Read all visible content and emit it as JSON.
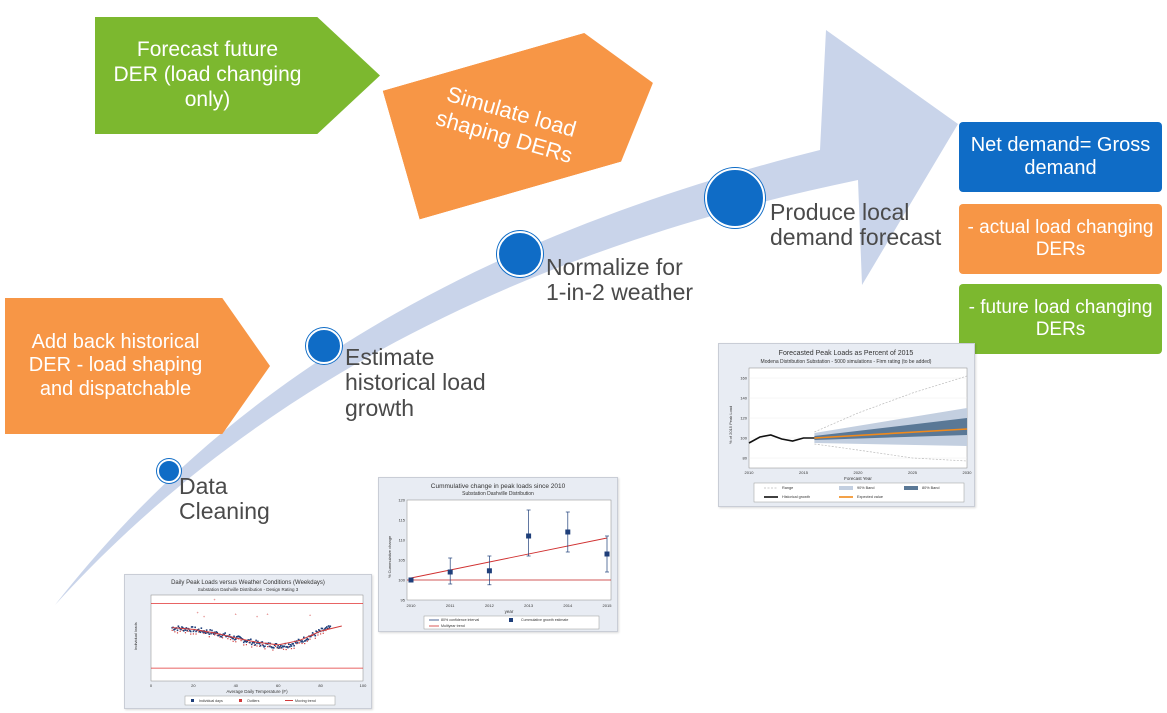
{
  "shapes": {
    "forecast_future_der": "Forecast future DER (load changing only)",
    "simulate_load_shaping": "Simulate load shaping DERs",
    "add_back_historical_der": "Add back historical DER - load shaping and dispatchable"
  },
  "steps": [
    {
      "label": "Data Cleaning"
    },
    {
      "label": "Estimate historical load growth"
    },
    {
      "label": "Normalize for 1-in-2 weather"
    },
    {
      "label": "Produce local demand forecast"
    }
  ],
  "equation": {
    "net_demand": "Net demand= Gross demand",
    "actual_load": "- actual load changing DERs",
    "future_load": "- future load changing DERs"
  },
  "colors": {
    "green": "#7cb82f",
    "orange": "#f79646",
    "blue": "#0f6cc6",
    "arrow": "#c9d4ea"
  },
  "chart_data": [
    {
      "type": "scatter",
      "title": "Daily Peak Loads versus Weather Conditions (Weekdays)",
      "subtitle": "Substation Dashville Distribution - Design Rating 3",
      "xlabel": "Average Daily Temperature (F)",
      "ylabel": "Individual loads",
      "xlim": [
        0,
        100
      ],
      "x_ticks": [
        "0",
        "20",
        "40",
        "60",
        "80",
        "100"
      ],
      "legend": [
        "Individual days",
        "Outliers",
        "Moving trend"
      ],
      "series": [
        {
          "name": "Individual days",
          "x": [
            10,
            15,
            20,
            25,
            30,
            35,
            40,
            45,
            50,
            55,
            60,
            65,
            70,
            75,
            80,
            85
          ],
          "values": [
            0.62,
            0.61,
            0.6,
            0.58,
            0.56,
            0.53,
            0.5,
            0.47,
            0.44,
            0.42,
            0.41,
            0.42,
            0.46,
            0.52,
            0.58,
            0.62
          ]
        },
        {
          "name": "Moving trend",
          "x": [
            10,
            20,
            30,
            40,
            50,
            60,
            70,
            80,
            90
          ],
          "values": [
            0.62,
            0.6,
            0.56,
            0.5,
            0.45,
            0.42,
            0.47,
            0.58,
            0.64
          ]
        }
      ],
      "hlines": [
        0.9,
        0.15
      ],
      "outliers": [
        {
          "x": 22,
          "y": 0.78
        },
        {
          "x": 25,
          "y": 0.73
        },
        {
          "x": 40,
          "y": 0.76
        },
        {
          "x": 55,
          "y": 0.76
        },
        {
          "x": 50,
          "y": 0.73
        },
        {
          "x": 75,
          "y": 0.75
        },
        {
          "x": 30,
          "y": 0.93
        }
      ]
    },
    {
      "type": "scatter",
      "title": "Cummulative change in peak loads since 2010",
      "subtitle": "Substation Dashville Distribution",
      "xlabel": "year",
      "ylabel": "% Cummulative change",
      "x": [
        "2010",
        "2011",
        "2012",
        "2013",
        "2014",
        "2015"
      ],
      "y_ticks": [
        "95",
        "100",
        "105",
        "110",
        "115",
        "120"
      ],
      "ylim": [
        95,
        120
      ],
      "series": [
        {
          "name": "Cummulative growth estimate",
          "values": [
            100,
            102.0,
            102.3,
            111.0,
            112.0,
            106.5
          ],
          "err_low": [
            99.6,
            99.0,
            98.8,
            106.0,
            107.0,
            102.0
          ],
          "err_high": [
            100.4,
            105.5,
            106.0,
            117.5,
            117.0,
            111.0
          ]
        },
        {
          "name": "Multiyear trend",
          "values": [
            100.5,
            102.5,
            104.5,
            106.5,
            108.5,
            110.5
          ]
        }
      ],
      "reference_line": 100,
      "legend": [
        "80% confidence interval",
        "Cummulative growth estimate",
        "Multiyear trend"
      ]
    },
    {
      "type": "line",
      "title": "Forecasted Peak Loads as Percent of 2015",
      "subtitle": "Modena Distribution Substation - 5000 simulations - Firm rating (to be added)",
      "xlabel": "Forecast Year",
      "ylabel": "% of 2015 Peak Load",
      "x_ticks": [
        "2010",
        "2015",
        "2020",
        "2025",
        "2030"
      ],
      "y_ticks": [
        "80",
        "100",
        "120",
        "140",
        "160"
      ],
      "xlim": [
        2010,
        2030
      ],
      "ylim": [
        70,
        170
      ],
      "historical": {
        "x": [
          2010,
          2011,
          2012,
          2013,
          2014,
          2015,
          2016
        ],
        "values": [
          95,
          101,
          103,
          99,
          97,
          100,
          100
        ]
      },
      "expected": {
        "x": [
          2016,
          2030
        ],
        "values": [
          100,
          109
        ]
      },
      "band_80": {
        "x": [
          2016,
          2030
        ],
        "low": [
          98,
          103
        ],
        "high": [
          102,
          120
        ]
      },
      "band_90": {
        "x": [
          2016,
          2030
        ],
        "low": [
          95,
          92
        ],
        "high": [
          105,
          130
        ]
      },
      "range": {
        "x": [
          2016,
          2020,
          2025,
          2030
        ],
        "low": [
          94,
          88,
          80,
          77
        ],
        "high": [
          106,
          125,
          145,
          162
        ]
      },
      "legend": [
        "Range",
        "90% Band",
        "80% Band",
        "Historical growth",
        "Expected value"
      ]
    }
  ]
}
